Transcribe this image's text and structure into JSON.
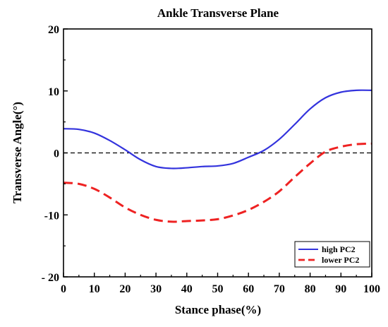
{
  "chart_data": {
    "type": "line",
    "title": "Ankle Transverse Plane",
    "xlabel": "Stance phase(%)",
    "ylabel": "Transverse Angle(°)",
    "xlim": [
      0,
      100
    ],
    "ylim": [
      -20,
      20
    ],
    "xticks": [
      0,
      10,
      20,
      30,
      40,
      50,
      60,
      70,
      80,
      90,
      100
    ],
    "yticks": [
      -20,
      -10,
      0,
      10,
      20
    ],
    "ytick_labels": [
      "- 20",
      "-10",
      "0",
      "10",
      "20"
    ],
    "reference_line": {
      "y": 0,
      "style": "dashed",
      "color": "#000000"
    },
    "legend_position": "bottom-right",
    "series": [
      {
        "name": "high PC2",
        "color": "#3333dd",
        "style": "solid",
        "x": [
          0,
          5,
          10,
          15,
          20,
          25,
          30,
          35,
          40,
          45,
          50,
          55,
          60,
          65,
          70,
          75,
          80,
          85,
          90,
          95,
          100
        ],
        "y": [
          3.9,
          3.8,
          3.2,
          2.0,
          0.5,
          -1.1,
          -2.2,
          -2.5,
          -2.4,
          -2.2,
          -2.1,
          -1.7,
          -0.7,
          0.4,
          2.2,
          4.6,
          7.1,
          8.9,
          9.8,
          10.1,
          10.1
        ]
      },
      {
        "name": "lower PC2",
        "color": "#ee2222",
        "style": "dashed",
        "x": [
          0,
          5,
          10,
          15,
          20,
          25,
          30,
          35,
          40,
          45,
          50,
          55,
          60,
          65,
          70,
          75,
          80,
          85,
          90,
          95,
          100
        ],
        "y": [
          -4.8,
          -5.0,
          -5.8,
          -7.2,
          -8.8,
          -10.0,
          -10.8,
          -11.1,
          -11.0,
          -10.9,
          -10.7,
          -10.1,
          -9.2,
          -7.9,
          -6.2,
          -3.9,
          -1.7,
          0.2,
          1.0,
          1.4,
          1.5
        ]
      }
    ]
  }
}
